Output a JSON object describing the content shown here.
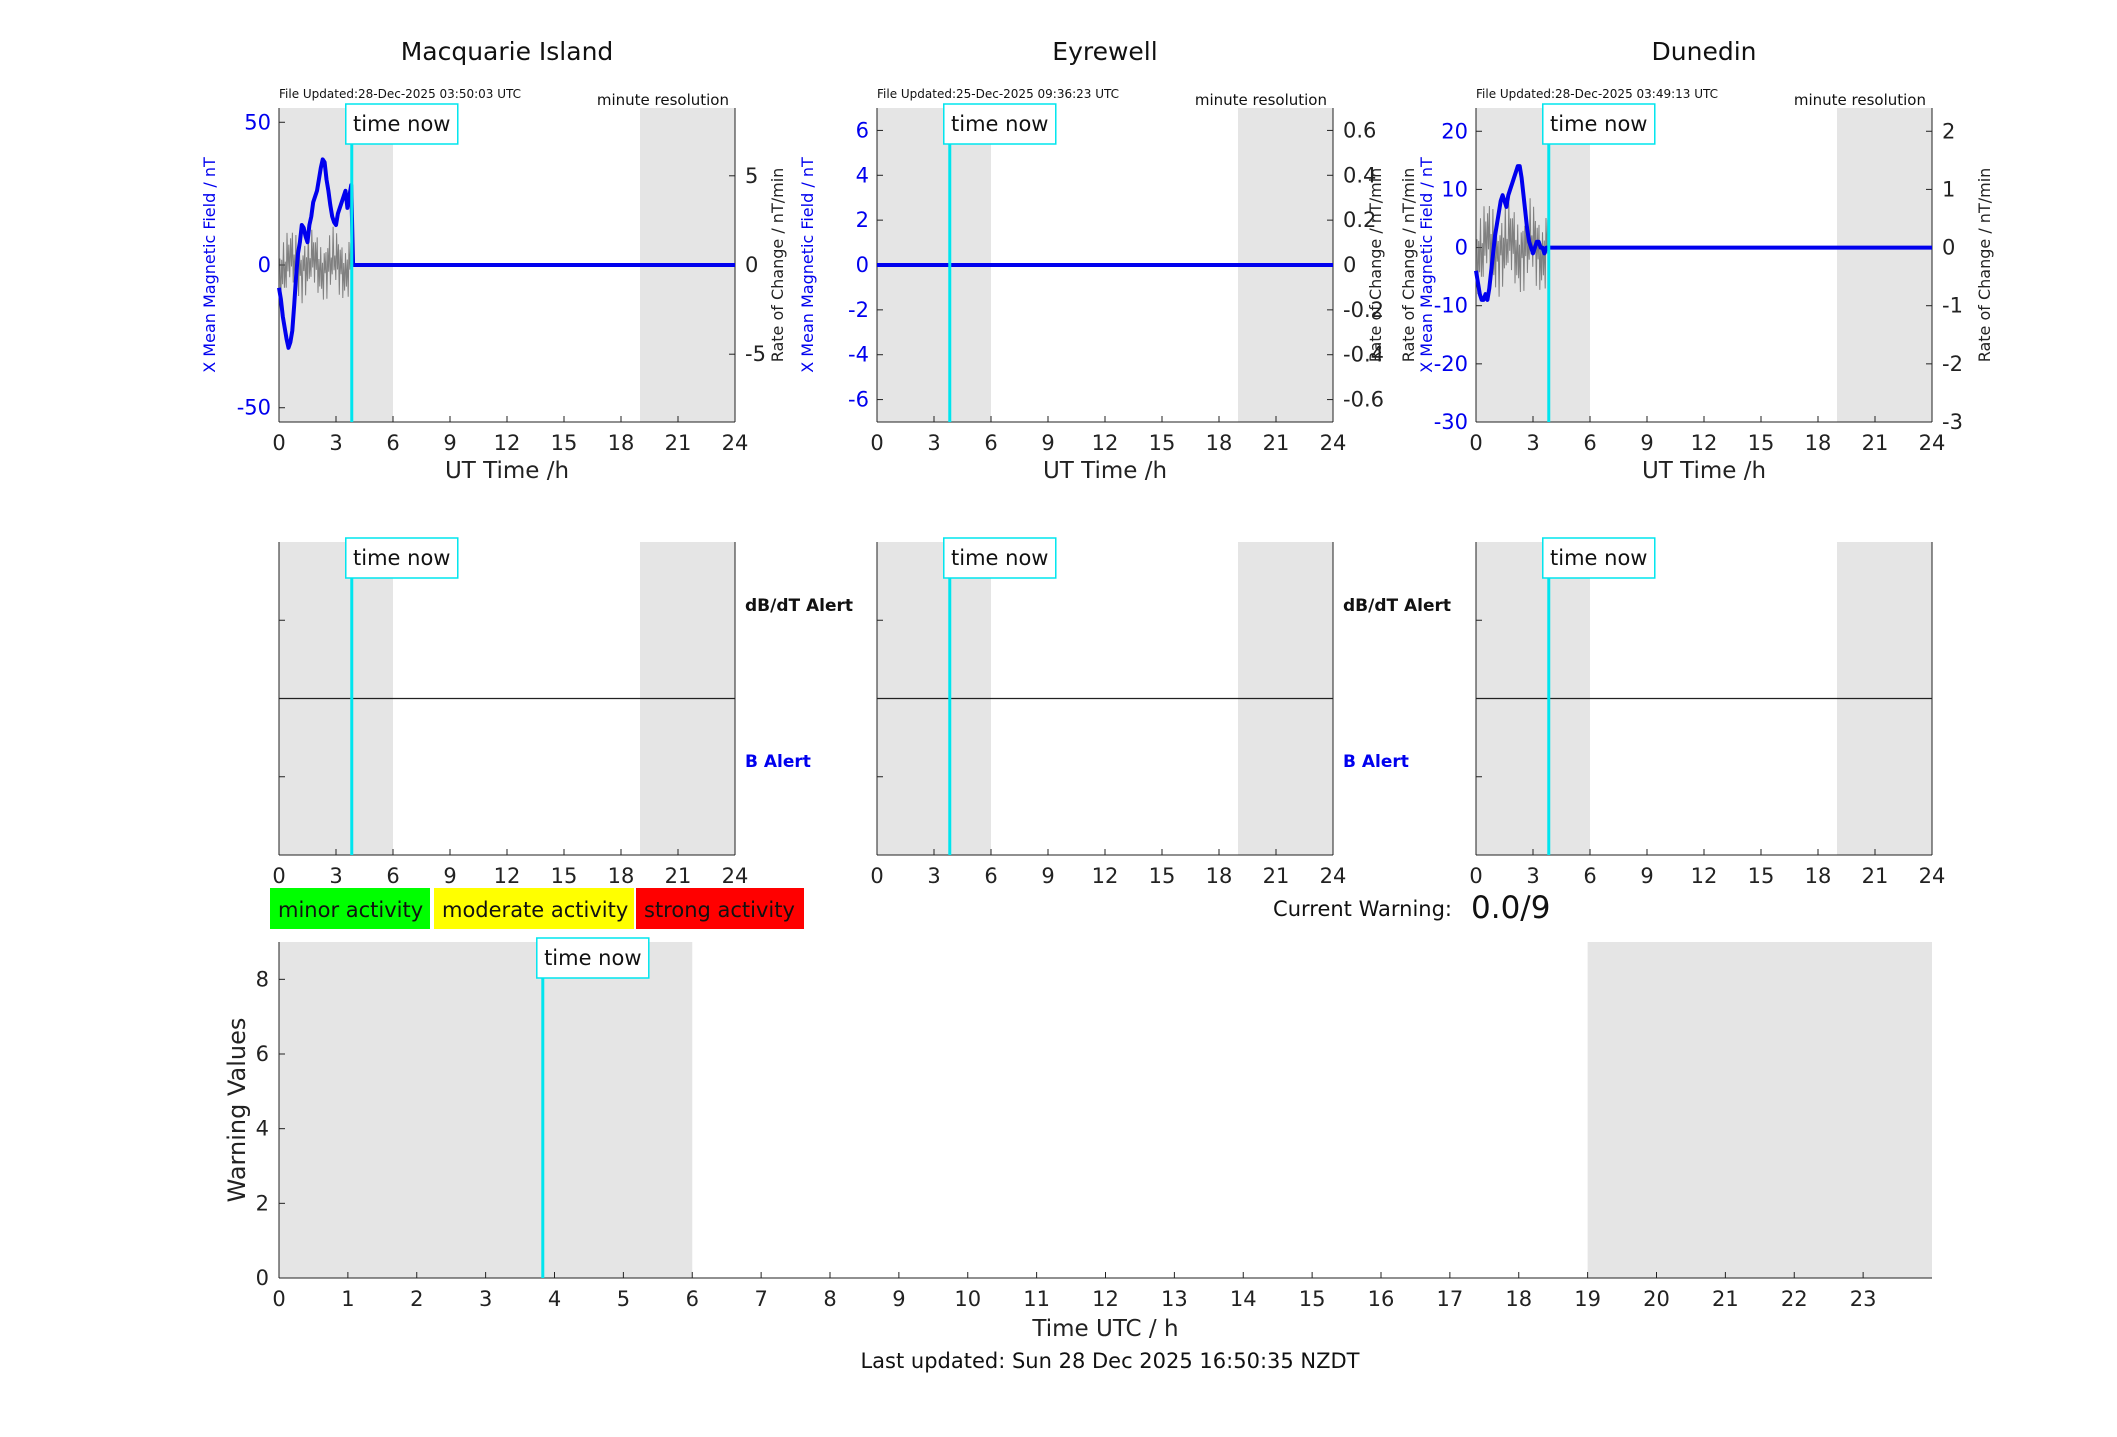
{
  "figure": {
    "time_now_label": "time now",
    "current_warning_label": "Current Warning:",
    "current_warning_value": "0.0/9",
    "footer": "Last updated: Sun 28 Dec 2025 16:50:35 NZDT",
    "activity_legend": [
      {
        "label": "minor activity",
        "color": "#00ff00"
      },
      {
        "label": "moderate activity",
        "color": "#ffff00"
      },
      {
        "label": "strong activity",
        "color": "#ff0000"
      }
    ],
    "colors": {
      "field": "#0000ee",
      "rate": "#555555",
      "time_now": "#00e5ee",
      "shade": "#e5e5e5"
    }
  },
  "chart_data": [
    {
      "type": "line",
      "title": "Macquarie Island",
      "file_updated": "File Updated:28-Dec-2025 03:50:03 UTC",
      "resolution": "minute resolution",
      "xlabel": "UT Time /h",
      "ylabel": "X Mean Magnetic Field / nT",
      "y2label": "Rate of Change / nT/min",
      "xlim": [
        0,
        24
      ],
      "xticks": [
        "0",
        "3",
        "6",
        "9",
        "12",
        "15",
        "18",
        "21",
        "24"
      ],
      "ylim": [
        -55,
        55
      ],
      "yticks": [
        "-50",
        "0",
        "50"
      ],
      "y2lim": [
        -8.8,
        8.8
      ],
      "y2ticks": [
        "-5",
        "0",
        "5"
      ],
      "time_now": 3.83,
      "night_shading": [
        [
          0,
          6
        ],
        [
          19,
          24
        ]
      ],
      "series": [
        {
          "values_x": [
            0,
            0.1,
            0.2,
            0.3,
            0.4,
            0.5,
            0.6,
            0.7,
            0.8,
            0.9,
            1.0,
            1.1,
            1.2,
            1.3,
            1.4,
            1.5,
            1.6,
            1.7,
            1.8,
            1.9,
            2.0,
            2.1,
            2.2,
            2.3,
            2.4,
            2.5,
            2.6,
            2.7,
            2.8,
            2.9,
            3.0,
            3.1,
            3.2,
            3.3,
            3.4,
            3.5,
            3.6,
            3.7,
            3.8,
            3.9,
            24
          ],
          "values_y": [
            -8,
            -12,
            -18,
            -22,
            -26,
            -29,
            -27,
            -23,
            -14,
            -4,
            4,
            8,
            14,
            13,
            10,
            8,
            14,
            17,
            22,
            24,
            26,
            30,
            34,
            37,
            36,
            30,
            26,
            21,
            17,
            15,
            14,
            18,
            20,
            22,
            24,
            26,
            20,
            24,
            28,
            0,
            0
          ]
        }
      ]
    },
    {
      "type": "line",
      "title": "Eyrewell",
      "file_updated": "File Updated:25-Dec-2025 09:36:23 UTC",
      "resolution": "minute resolution",
      "xlabel": "UT Time /h",
      "ylabel": "X Mean Magnetic Field / nT",
      "y2label": "Rate of Change / nT/min",
      "xlim": [
        0,
        24
      ],
      "xticks": [
        "0",
        "3",
        "6",
        "9",
        "12",
        "15",
        "18",
        "21",
        "24"
      ],
      "ylim": [
        -7,
        7
      ],
      "yticks": [
        "-6",
        "-4",
        "-2",
        "0",
        "2",
        "4",
        "6"
      ],
      "y2lim": [
        -0.7,
        0.7
      ],
      "y2ticks": [
        "-0.6",
        "-0.4",
        "-0.2",
        "0",
        "0.2",
        "0.4",
        "0.6"
      ],
      "time_now": 3.83,
      "night_shading": [
        [
          0,
          6
        ],
        [
          19,
          24
        ]
      ],
      "series": [
        {
          "values_x": [
            0,
            24
          ],
          "values_y": [
            0,
            0
          ]
        }
      ]
    },
    {
      "type": "line",
      "title": "Dunedin",
      "file_updated": "File Updated:28-Dec-2025 03:49:13 UTC",
      "resolution": "minute resolution",
      "xlabel": "UT Time /h",
      "ylabel": "X Mean Magnetic Field / nT",
      "y2label": "Rate of Change / nT/min",
      "xlim": [
        0,
        24
      ],
      "xticks": [
        "0",
        "3",
        "6",
        "9",
        "12",
        "15",
        "18",
        "21",
        "24"
      ],
      "ylim": [
        -30,
        24
      ],
      "yticks": [
        "-30",
        "-20",
        "-10",
        "0",
        "10",
        "20"
      ],
      "y2lim": [
        -3,
        2.4
      ],
      "y2ticks": [
        "-3",
        "-2",
        "-1",
        "0",
        "1",
        "2"
      ],
      "time_now": 3.83,
      "night_shading": [
        [
          0,
          6
        ],
        [
          19,
          24
        ]
      ],
      "series": [
        {
          "values_x": [
            0,
            0.1,
            0.2,
            0.3,
            0.4,
            0.5,
            0.6,
            0.7,
            0.8,
            0.9,
            1.0,
            1.1,
            1.2,
            1.3,
            1.4,
            1.5,
            1.6,
            1.7,
            1.8,
            1.9,
            2.0,
            2.1,
            2.2,
            2.3,
            2.4,
            2.5,
            2.6,
            2.7,
            2.8,
            2.9,
            3.0,
            3.1,
            3.2,
            3.3,
            3.4,
            3.5,
            3.6,
            3.7,
            3.8,
            24
          ],
          "values_y": [
            -4,
            -6,
            -8,
            -9,
            -9,
            -8,
            -9,
            -7,
            -4,
            -1,
            2,
            4,
            6,
            8,
            9,
            8,
            7,
            9,
            10,
            11,
            12,
            13,
            14,
            14,
            12,
            9,
            6,
            3,
            1,
            0,
            -1,
            0,
            1,
            1,
            0,
            0,
            -1,
            0,
            0,
            0
          ]
        }
      ]
    },
    {
      "type": "line",
      "title": "",
      "ylabel": "",
      "y2_labels": [
        "dB/dT Alert",
        "B Alert"
      ],
      "xlim": [
        0,
        24
      ],
      "xticks": [
        "0",
        "3",
        "6",
        "9",
        "12",
        "15",
        "18",
        "21",
        "24"
      ],
      "ylim": [
        0,
        1
      ],
      "time_now": 3.83,
      "night_shading": [
        [
          0,
          6
        ],
        [
          19,
          24
        ]
      ],
      "series": [
        {
          "values_x": [
            0,
            24
          ],
          "values_y": [
            0.5,
            0.5
          ]
        }
      ]
    },
    {
      "type": "line",
      "title": "",
      "y2_labels": [
        "dB/dT Alert",
        "B Alert"
      ],
      "xlim": [
        0,
        24
      ],
      "xticks": [
        "0",
        "3",
        "6",
        "9",
        "12",
        "15",
        "18",
        "21",
        "24"
      ],
      "ylim": [
        0,
        1
      ],
      "time_now": 3.83,
      "night_shading": [
        [
          0,
          6
        ],
        [
          19,
          24
        ]
      ],
      "series": [
        {
          "values_x": [
            0,
            24
          ],
          "values_y": [
            0.5,
            0.5
          ]
        }
      ]
    },
    {
      "type": "line",
      "title": "",
      "xlim": [
        0,
        24
      ],
      "xticks": [
        "0",
        "3",
        "6",
        "9",
        "12",
        "15",
        "18",
        "21",
        "24"
      ],
      "ylim": [
        0,
        1
      ],
      "time_now": 3.83,
      "night_shading": [
        [
          0,
          6
        ],
        [
          19,
          24
        ]
      ],
      "series": [
        {
          "values_x": [
            0,
            24
          ],
          "values_y": [
            0.5,
            0.5
          ]
        }
      ]
    },
    {
      "type": "bar",
      "title": "",
      "xlabel": "Time UTC / h",
      "ylabel": "Warning Values",
      "xlim": [
        0,
        24
      ],
      "xticks": [
        "0",
        "1",
        "2",
        "3",
        "4",
        "5",
        "6",
        "7",
        "8",
        "9",
        "10",
        "11",
        "12",
        "13",
        "14",
        "15",
        "16",
        "17",
        "18",
        "19",
        "20",
        "21",
        "22",
        "23"
      ],
      "ylim": [
        0,
        9
      ],
      "yticks": [
        "0",
        "2",
        "4",
        "6",
        "8"
      ],
      "time_now": 3.83,
      "night_shading": [
        [
          0,
          6
        ],
        [
          19,
          24
        ]
      ],
      "values": []
    }
  ]
}
